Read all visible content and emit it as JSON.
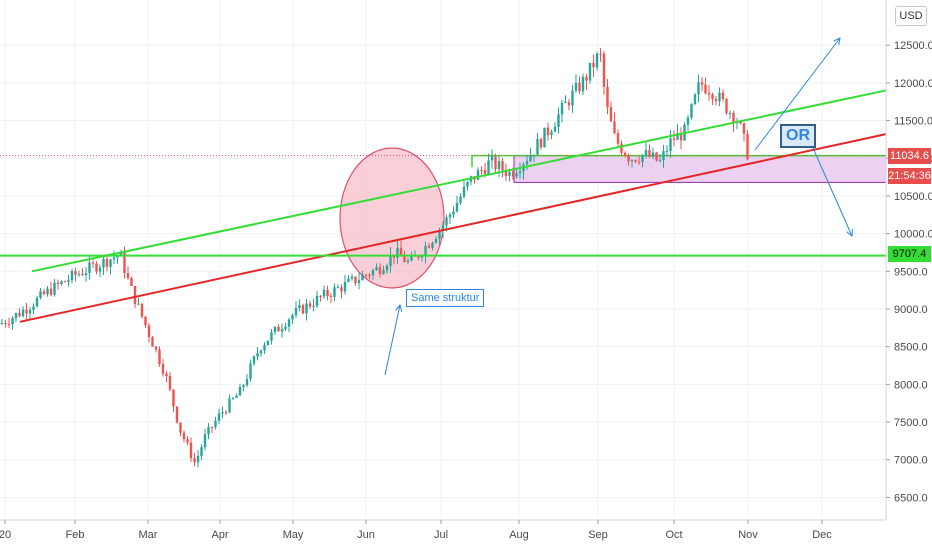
{
  "chart_data": {
    "type": "candlestick",
    "currency_label": "USD",
    "x_ticks": [
      "20",
      "Feb",
      "Mar",
      "Apr",
      "May",
      "Jun",
      "Jul",
      "Aug",
      "Sep",
      "Oct",
      "Nov",
      "Dec"
    ],
    "y_ticks": [
      "12500.0",
      "12000.0",
      "11500.0",
      "11000.0",
      "10500.0",
      "10000.0",
      "9500.0",
      "9000.0",
      "8500.0",
      "8000.0",
      "7500.0",
      "7000.0",
      "6500.0"
    ],
    "ylim": [
      6200,
      13100
    ],
    "price_labels": {
      "current": "11034.6",
      "countdown": "21:54:36",
      "support_level": "9707.4"
    },
    "support_level": 9707.4,
    "current_price": 11034.6,
    "range_box": {
      "from": "Aug",
      "to": "Nov",
      "top": 11034.6,
      "bottom": 10680
    },
    "trend_lines": [
      {
        "name": "upper-trend",
        "color": "#33dd33",
        "from": [
          "Jan",
          9500
        ],
        "to": [
          "Dec",
          11900
        ]
      },
      {
        "name": "lower-trend",
        "color": "#e32626",
        "from": [
          "Jan",
          8830
        ],
        "to": [
          "Dec",
          11320
        ]
      }
    ],
    "annotations": {
      "structure_label": "Same struktur",
      "or_label": "OR"
    },
    "colors": {
      "up": "#26a69a",
      "down": "#ef5350",
      "circle_fill": "#f8bbc7",
      "circle_stroke": "#e0506a",
      "box_fill": "#e8c6ec",
      "box_stroke": "#9c27b0",
      "support_line": "#33dd33",
      "arrow": "#2e86de"
    }
  }
}
